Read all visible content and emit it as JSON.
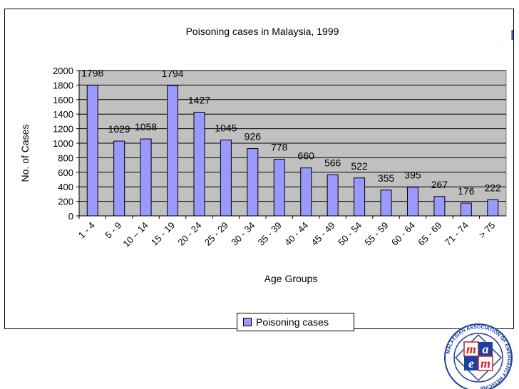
{
  "chart_data": {
    "type": "bar",
    "title": "Poisoning cases in Malaysia, 1999",
    "xlabel": "Age Groups",
    "ylabel": "No. of Cases",
    "ylim": [
      0,
      2000
    ],
    "yticks": [
      0,
      200,
      400,
      600,
      800,
      1000,
      1200,
      1400,
      1600,
      1800,
      2000
    ],
    "grid": true,
    "legend_position": "bottom",
    "categories": [
      "1 - 4",
      "5 - 9",
      "10 – 14",
      "15 - 19",
      "20 - 24",
      "25 - 29",
      "30 - 34",
      "35 - 39",
      "40 - 44",
      "45 - 49",
      "50 - 54",
      "55 - 59",
      "60 - 64",
      "65 - 69",
      "71 - 74",
      "> 75"
    ],
    "series": [
      {
        "name": "Poisoning cases",
        "color": "#9999ff",
        "values": [
          1798,
          1029,
          1058,
          1794,
          1427,
          1045,
          926,
          778,
          660,
          566,
          522,
          355,
          395,
          267,
          176,
          222
        ]
      }
    ]
  },
  "colors": {
    "bar_fill": "#9999ff",
    "plot_background": "#c0c0c0",
    "gridline": "#000000"
  },
  "logo": {
    "text": "MALAYSIAN ASSOCIATION OF EMERGENCY MEDICINE",
    "letters": [
      "m",
      "a",
      "e",
      "m"
    ]
  }
}
